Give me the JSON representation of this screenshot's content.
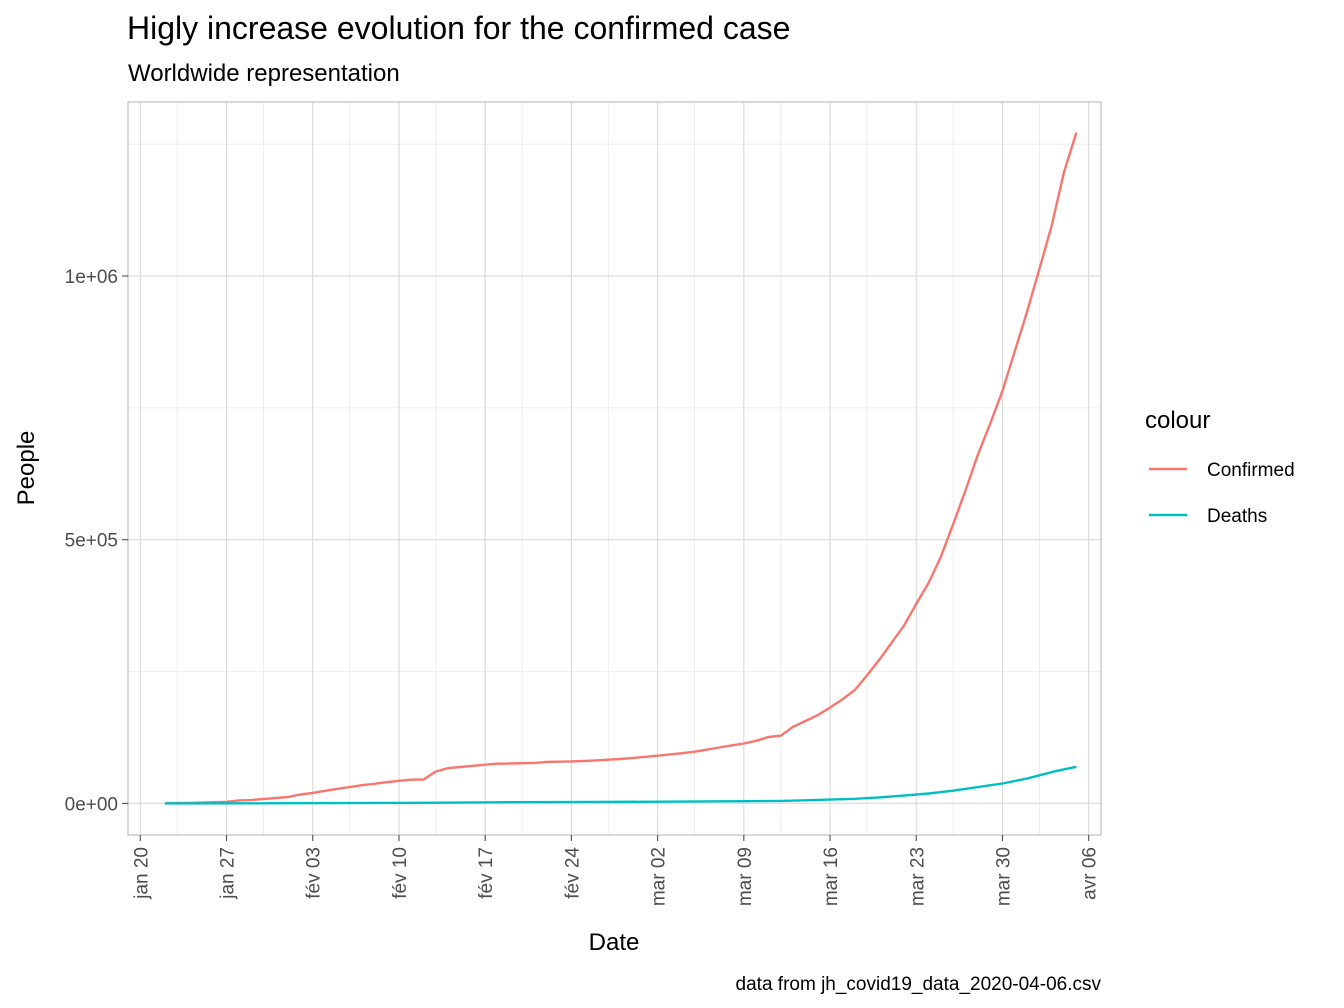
{
  "chart_data": {
    "type": "line",
    "title": "Higly increase evolution for the confirmed case",
    "subtitle": "Worldwide representation",
    "xlabel": "Date",
    "ylabel": "People",
    "caption": "data from jh_covid19_data_2020-04-06.csv",
    "xlim": [
      "2020-01-19",
      "2020-04-07"
    ],
    "ylim": [
      -60000,
      1330000
    ],
    "x_ticks": [
      {
        "date": "2020-01-20",
        "label": "jan 20"
      },
      {
        "date": "2020-01-27",
        "label": "jan 27"
      },
      {
        "date": "2020-02-03",
        "label": "fév 03"
      },
      {
        "date": "2020-02-10",
        "label": "fév 10"
      },
      {
        "date": "2020-02-17",
        "label": "fév 17"
      },
      {
        "date": "2020-02-24",
        "label": "fév 24"
      },
      {
        "date": "2020-03-02",
        "label": "mar 02"
      },
      {
        "date": "2020-03-09",
        "label": "mar 09"
      },
      {
        "date": "2020-03-16",
        "label": "mar 16"
      },
      {
        "date": "2020-03-23",
        "label": "mar 23"
      },
      {
        "date": "2020-03-30",
        "label": "mar 30"
      },
      {
        "date": "2020-04-06",
        "label": "avr 06"
      }
    ],
    "y_ticks": [
      {
        "value": 0,
        "label": "0e+00"
      },
      {
        "value": 500000,
        "label": "5e+05"
      },
      {
        "value": 1000000,
        "label": "1e+06"
      }
    ],
    "y_minor_ticks": [
      250000,
      750000,
      1250000
    ],
    "grid": true,
    "legend": {
      "title": "colour",
      "position": "right"
    },
    "series": [
      {
        "name": "Confirmed",
        "color": "#F8766D",
        "points": [
          [
            "2020-01-22",
            555
          ],
          [
            "2020-01-23",
            654
          ],
          [
            "2020-01-24",
            941
          ],
          [
            "2020-01-25",
            1434
          ],
          [
            "2020-01-26",
            2118
          ],
          [
            "2020-01-27",
            2927
          ],
          [
            "2020-01-28",
            5578
          ],
          [
            "2020-01-29",
            6166
          ],
          [
            "2020-01-30",
            8234
          ],
          [
            "2020-01-31",
            9927
          ],
          [
            "2020-02-01",
            12038
          ],
          [
            "2020-02-02",
            16787
          ],
          [
            "2020-02-03",
            19881
          ],
          [
            "2020-02-04",
            23892
          ],
          [
            "2020-02-05",
            27635
          ],
          [
            "2020-02-06",
            30817
          ],
          [
            "2020-02-07",
            34391
          ],
          [
            "2020-02-08",
            37120
          ],
          [
            "2020-02-09",
            40150
          ],
          [
            "2020-02-10",
            42762
          ],
          [
            "2020-02-11",
            44802
          ],
          [
            "2020-02-12",
            45221
          ],
          [
            "2020-02-13",
            60368
          ],
          [
            "2020-02-14",
            66885
          ],
          [
            "2020-02-15",
            69030
          ],
          [
            "2020-02-16",
            71224
          ],
          [
            "2020-02-17",
            73258
          ],
          [
            "2020-02-18",
            75136
          ],
          [
            "2020-02-19",
            75639
          ],
          [
            "2020-02-20",
            76197
          ],
          [
            "2020-02-21",
            76819
          ],
          [
            "2020-02-22",
            78572
          ],
          [
            "2020-02-23",
            78958
          ],
          [
            "2020-02-24",
            79561
          ],
          [
            "2020-02-25",
            80406
          ],
          [
            "2020-02-26",
            81388
          ],
          [
            "2020-02-27",
            82746
          ],
          [
            "2020-02-28",
            84112
          ],
          [
            "2020-02-29",
            86011
          ],
          [
            "2020-03-01",
            88369
          ],
          [
            "2020-03-02",
            90306
          ],
          [
            "2020-03-03",
            92840
          ],
          [
            "2020-03-04",
            95120
          ],
          [
            "2020-03-05",
            97886
          ],
          [
            "2020-03-06",
            101801
          ],
          [
            "2020-03-07",
            105847
          ],
          [
            "2020-03-08",
            109821
          ],
          [
            "2020-03-09",
            113590
          ],
          [
            "2020-03-10",
            118620
          ],
          [
            "2020-03-11",
            125875
          ],
          [
            "2020-03-12",
            128352
          ],
          [
            "2020-03-13",
            145205
          ],
          [
            "2020-03-14",
            156101
          ],
          [
            "2020-03-15",
            167454
          ],
          [
            "2020-03-16",
            181574
          ],
          [
            "2020-03-17",
            197102
          ],
          [
            "2020-03-18",
            214821
          ],
          [
            "2020-03-19",
            242570
          ],
          [
            "2020-03-20",
            272208
          ],
          [
            "2020-03-21",
            304507
          ],
          [
            "2020-03-22",
            336953
          ],
          [
            "2020-03-23",
            378231
          ],
          [
            "2020-03-24",
            418041
          ],
          [
            "2020-03-25",
            467653
          ],
          [
            "2020-03-26",
            529591
          ],
          [
            "2020-03-27",
            593291
          ],
          [
            "2020-03-28",
            660706
          ],
          [
            "2020-03-29",
            720117
          ],
          [
            "2020-03-30",
            782365
          ],
          [
            "2020-03-31",
            857487
          ],
          [
            "2020-04-01",
            932605
          ],
          [
            "2020-04-02",
            1013157
          ],
          [
            "2020-04-03",
            1095917
          ],
          [
            "2020-04-04",
            1197405
          ],
          [
            "2020-04-05",
            1272115
          ]
        ]
      },
      {
        "name": "Deaths",
        "color": "#00BFC4",
        "points": [
          [
            "2020-01-22",
            17
          ],
          [
            "2020-01-29",
            133
          ],
          [
            "2020-02-05",
            565
          ],
          [
            "2020-02-12",
            1118
          ],
          [
            "2020-02-19",
            2122
          ],
          [
            "2020-02-26",
            2770
          ],
          [
            "2020-03-04",
            3254
          ],
          [
            "2020-03-09",
            4012
          ],
          [
            "2020-03-12",
            4720
          ],
          [
            "2020-03-14",
            5819
          ],
          [
            "2020-03-16",
            7126
          ],
          [
            "2020-03-18",
            8733
          ],
          [
            "2020-03-20",
            11299
          ],
          [
            "2020-03-22",
            14651
          ],
          [
            "2020-03-24",
            18625
          ],
          [
            "2020-03-26",
            24087
          ],
          [
            "2020-03-28",
            30849
          ],
          [
            "2020-03-30",
            37602
          ],
          [
            "2020-04-01",
            47208
          ],
          [
            "2020-04-02",
            53190
          ],
          [
            "2020-04-03",
            59211
          ],
          [
            "2020-04-04",
            64606
          ],
          [
            "2020-04-05",
            69374
          ]
        ]
      }
    ]
  }
}
